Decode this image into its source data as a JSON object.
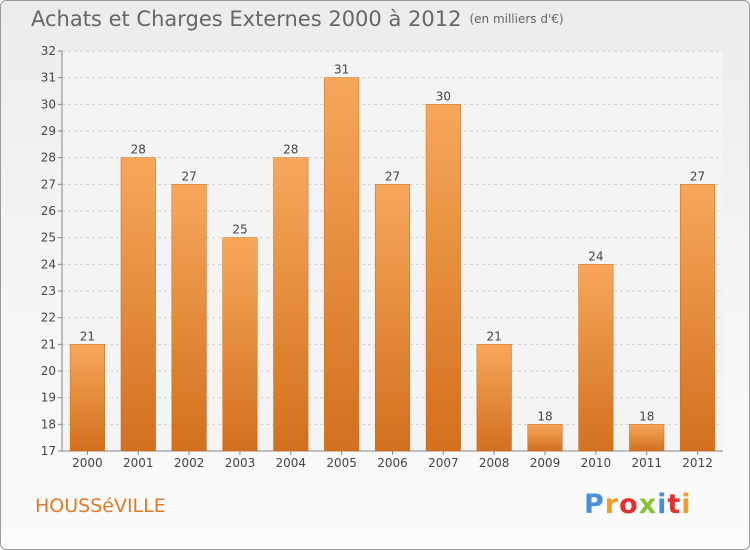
{
  "title": "Achats et Charges Externes 2000 à 2012",
  "unit": "(en milliers d'€)",
  "commune": "HOUSSéVILLE",
  "logo": {
    "letters": [
      "P",
      "r",
      "o",
      "x",
      "i",
      "t",
      "i"
    ],
    "colors": [
      "#4a90d9",
      "#f0a020",
      "#e03030",
      "#8ac23a",
      "#4a90d9",
      "#e03030",
      "#f0a020"
    ]
  },
  "colors": {
    "bar_light": "#f7a75a",
    "bar_dark": "#d2701e",
    "grid": "#d0d0d0",
    "axis": "#888888"
  },
  "chart_data": {
    "type": "bar",
    "categories": [
      "2000",
      "2001",
      "2002",
      "2003",
      "2004",
      "2005",
      "2006",
      "2007",
      "2008",
      "2009",
      "2010",
      "2011",
      "2012"
    ],
    "values": [
      21,
      28,
      27,
      25,
      28,
      31,
      27,
      30,
      21,
      18,
      24,
      18,
      27
    ],
    "ylim": [
      17,
      32
    ],
    "yticks": [
      17,
      18,
      19,
      20,
      21,
      22,
      23,
      24,
      25,
      26,
      27,
      28,
      29,
      30,
      31,
      32
    ],
    "grid": true,
    "xlabel": "",
    "ylabel": ""
  }
}
